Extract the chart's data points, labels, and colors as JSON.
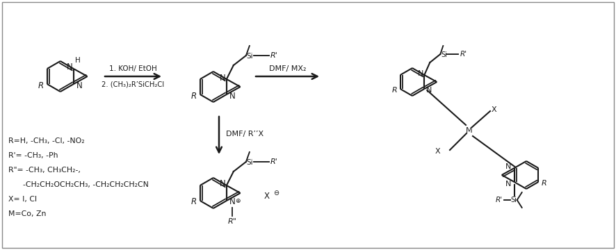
{
  "bg_color": "#ffffff",
  "border_color": "#888888",
  "text_color": "#1a1a1a",
  "figsize": [
    8.87,
    3.6
  ],
  "dpi": 100,
  "legend_lines": [
    "R=H, -CH₃, -Cl, -NO₂",
    "R'= -CH₃, -Ph",
    "R’’= -CH₃, CH₃CH₂-,",
    "       -CH₂CH₂OCH₂CH₃, -CH₂CH₂CH₂CN",
    "X= I, Cl",
    "M=Co, Zn"
  ],
  "arrow1_label_1": "1. KOH/ EtOH",
  "arrow1_label_2": "2. (CH₃)₂R’SiCH₂Cl",
  "arrow2_label": "DMF/ MX₂",
  "arrow3_label": "DMF/ R’’X"
}
